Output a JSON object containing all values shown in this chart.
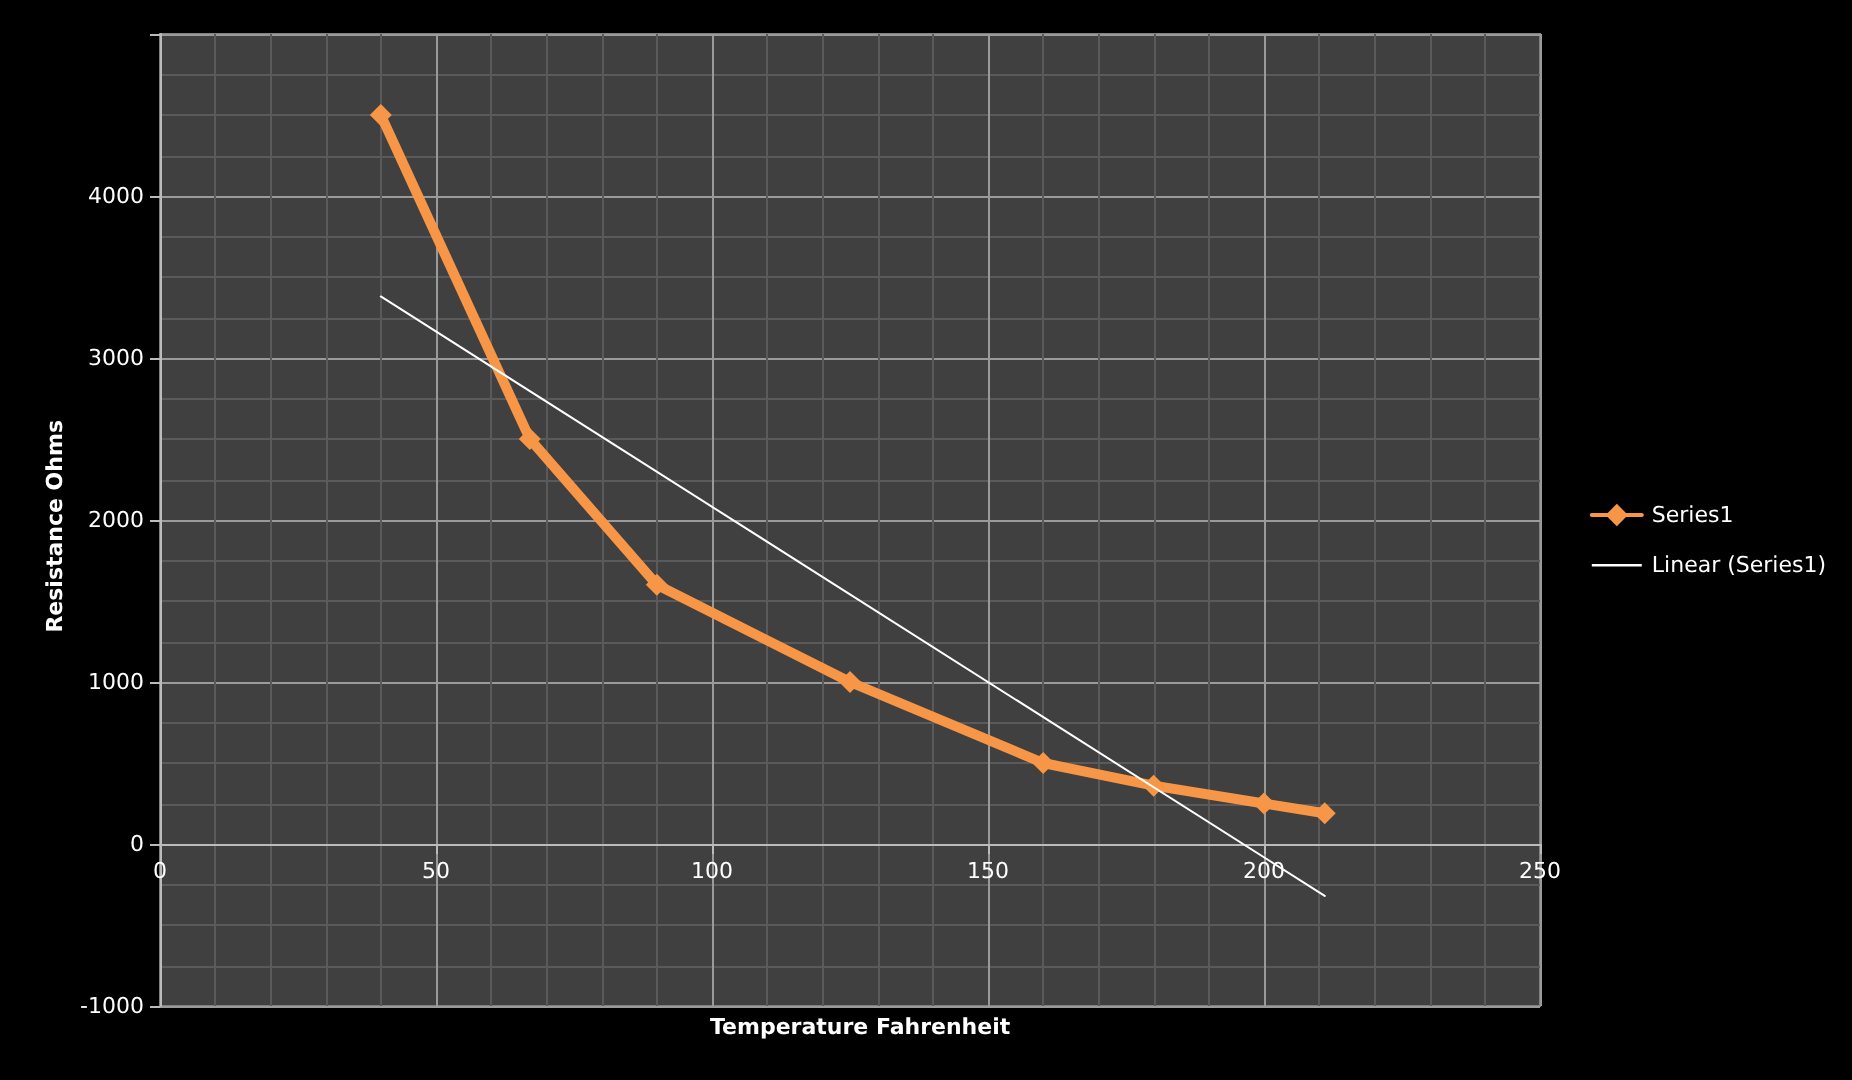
{
  "chart_data": {
    "type": "line",
    "xlabel": "Temperature Fahrenheit",
    "ylabel": "Resistance Ohms",
    "xlim": [
      0,
      250
    ],
    "xticks": [
      0,
      50,
      100,
      150,
      200,
      250
    ],
    "ylim": [
      -1000,
      5000
    ],
    "yticks": [
      -1000,
      0,
      1000,
      2000,
      3000,
      4000,
      {
        "value": 5000,
        "label": null
      }
    ],
    "grid": true,
    "legend": "right",
    "marker": "diamond",
    "line_style": "solid",
    "series": [
      {
        "name": "Series1",
        "color": "#f79646",
        "x": [
          40,
          67,
          90,
          125,
          160,
          180,
          200,
          211
        ],
        "values": [
          4500,
          2500,
          1600,
          1000,
          500,
          360,
          250,
          190
        ]
      },
      {
        "name": "Linear (Series1)",
        "type": "line",
        "marker": "none",
        "color": "#ffffff",
        "x": [
          40,
          211
        ],
        "values": [
          3380,
          -320
        ]
      }
    ]
  }
}
